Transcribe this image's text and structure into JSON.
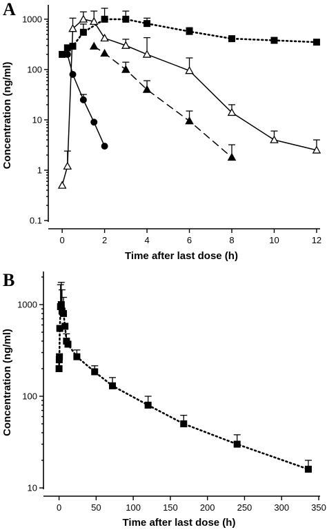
{
  "chart_data": [
    {
      "type": "line",
      "panel_label": "A",
      "xlabel": "Time after last dose (h)",
      "ylabel": "Concentration (ng/ml)",
      "x_scale": "linear",
      "y_scale": "log",
      "xlim": [
        -0.2,
        12.1
      ],
      "ylim": [
        0.1,
        1500
      ],
      "xticks": [
        0,
        2,
        4,
        6,
        8,
        10,
        12
      ],
      "yticks": [
        0.1,
        1,
        10,
        100,
        1000
      ],
      "ytick_labels": [
        "0.1",
        "1",
        "10",
        "100",
        "1000"
      ],
      "grid": false,
      "series": [
        {
          "marker": "filled-square",
          "line_style": "dotted",
          "x": [
            0,
            0.25,
            0.5,
            1,
            2,
            3,
            4,
            6,
            8,
            10,
            12
          ],
          "y": [
            200,
            270,
            290,
            550,
            1000,
            1000,
            820,
            570,
            410,
            380,
            350
          ],
          "err_upper": [
            0,
            0,
            0,
            800,
            1650,
            1450,
            1050,
            680,
            0,
            0,
            0
          ]
        },
        {
          "marker": "open-triangle",
          "line_style": "solid",
          "x": [
            0,
            0.25,
            0.5,
            1,
            1.5,
            2,
            3,
            4,
            6,
            8,
            10,
            12
          ],
          "y": [
            0.5,
            1.2,
            650,
            1000,
            900,
            420,
            300,
            200,
            95,
            14,
            4,
            2.5
          ],
          "err_upper": [
            0,
            2.4,
            1050,
            1400,
            1450,
            0,
            400,
            430,
            170,
            20,
            6,
            4
          ]
        },
        {
          "marker": "filled-triangle",
          "line_style": "dashed",
          "x": [
            1.5,
            2,
            3,
            4,
            6,
            8
          ],
          "y": [
            290,
            210,
            100,
            40,
            9.5,
            1.8
          ],
          "err_upper": [
            0,
            0,
            140,
            60,
            15,
            3.2
          ]
        },
        {
          "marker": "filled-circle",
          "line_style": "solid",
          "x": [
            0.25,
            0.5,
            1,
            1.5,
            2
          ],
          "y": [
            200,
            80,
            25,
            9,
            3
          ],
          "err_upper": [
            0,
            0,
            32,
            0,
            0
          ]
        }
      ]
    },
    {
      "type": "line",
      "panel_label": "B",
      "xlabel": "Time after last dose (h)",
      "ylabel": "Concentration (ng/ml)",
      "x_scale": "linear",
      "y_scale": "log",
      "xlim": [
        -8,
        350
      ],
      "ylim": [
        10,
        2000
      ],
      "xticks": [
        0,
        50,
        100,
        150,
        200,
        250,
        300,
        350
      ],
      "yticks": [
        10,
        100,
        1000
      ],
      "ytick_labels": [
        "10",
        "100",
        "1000"
      ],
      "grid": false,
      "series": [
        {
          "marker": "filled-square",
          "line_style": "dotted",
          "x": [
            0,
            0.25,
            0.5,
            1,
            2,
            3,
            4,
            6,
            8,
            10,
            12,
            24,
            48,
            72,
            120,
            168,
            240,
            336
          ],
          "y": [
            200,
            250,
            270,
            550,
            950,
            1000,
            850,
            800,
            580,
            400,
            370,
            270,
            185,
            130,
            80,
            50,
            30,
            16
          ],
          "err_upper": [
            0,
            0,
            0,
            0,
            1650,
            1750,
            1450,
            1200,
            0,
            480,
            0,
            320,
            215,
            160,
            100,
            62,
            38,
            20
          ]
        }
      ]
    }
  ]
}
